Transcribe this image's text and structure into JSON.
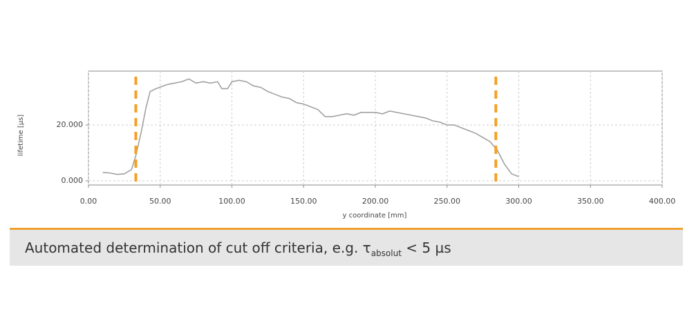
{
  "chart_data": {
    "type": "line",
    "xlabel": "y coordinate [mm]",
    "ylabel": "lifetime [µs]",
    "x": [
      10,
      15,
      20,
      25,
      30,
      33,
      37,
      40,
      43,
      47,
      55,
      65,
      70,
      75,
      80,
      85,
      90,
      93,
      97,
      100,
      105,
      110,
      115,
      120,
      125,
      130,
      135,
      140,
      145,
      150,
      155,
      160,
      165,
      170,
      175,
      180,
      185,
      190,
      195,
      200,
      205,
      210,
      215,
      220,
      225,
      230,
      235,
      240,
      245,
      250,
      255,
      260,
      265,
      270,
      275,
      280,
      285,
      290,
      295,
      300
    ],
    "values": [
      3,
      2.8,
      2.3,
      2.5,
      4,
      9,
      18,
      26,
      32,
      33,
      34.5,
      35.5,
      36.5,
      35,
      35.5,
      35,
      35.5,
      33,
      33,
      35.5,
      36,
      35.5,
      34,
      33.5,
      32,
      31,
      30,
      29.5,
      28,
      27.5,
      26.5,
      25.5,
      23,
      23,
      23.5,
      24,
      23.5,
      24.5,
      24.5,
      24.5,
      24,
      25,
      24.5,
      24,
      23.5,
      23,
      22.5,
      21.5,
      21,
      20,
      20,
      19,
      18,
      17,
      15.5,
      14,
      11,
      6,
      2.5,
      1.5
    ],
    "color": "#a0a0a0",
    "xlim": [
      0,
      400
    ],
    "xticks": [
      {
        "value": 0,
        "label": "0.00"
      },
      {
        "value": 50,
        "label": "50.00"
      },
      {
        "value": 100,
        "label": "100.00"
      },
      {
        "value": 150,
        "label": "150.00"
      },
      {
        "value": 200,
        "label": "200.00"
      },
      {
        "value": 250,
        "label": "250.00"
      },
      {
        "value": 300,
        "label": "300.00"
      },
      {
        "value": 350,
        "label": "350.00"
      },
      {
        "value": 400,
        "label": "400.00"
      }
    ],
    "ylim": [
      -1.5,
      39.3
    ],
    "yticks": [
      {
        "value": 0,
        "label": "0.000"
      },
      {
        "value": 20,
        "label": "20.000"
      }
    ],
    "grid": true,
    "cutoff_lines": [
      33,
      284
    ],
    "cutoff_color": "#f5a023"
  },
  "caption": {
    "text": "Automated determination of cut off criteria, e.g. τ",
    "subscript": "absolut",
    "text_after": "< 5 µs"
  }
}
